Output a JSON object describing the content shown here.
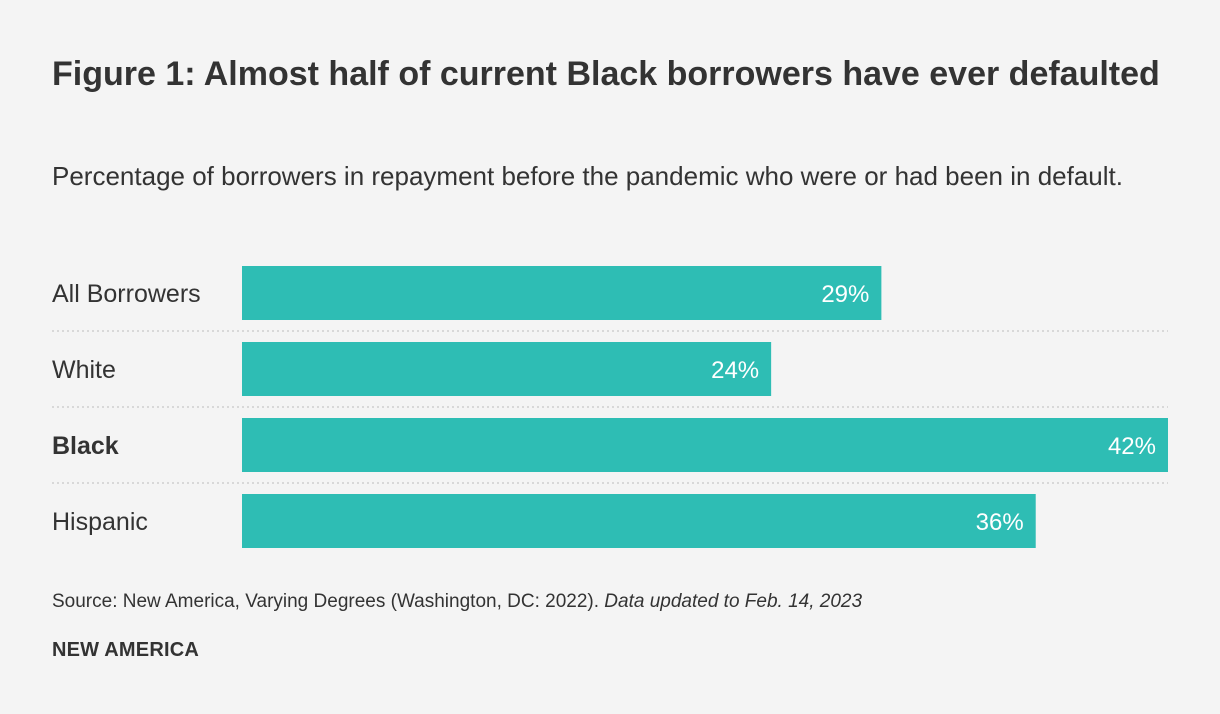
{
  "chart_data": {
    "type": "bar",
    "orientation": "horizontal",
    "title": "Figure 1: Almost half of current Black borrowers have ever defaulted",
    "subtitle": "Percentage of borrowers in repayment before the pandemic who were or had been in default.",
    "categories": [
      "All Borrowers",
      "White",
      "Black",
      "Hispanic"
    ],
    "values": [
      29,
      24,
      42,
      36
    ],
    "value_labels": [
      "29%",
      "24%",
      "42%",
      "36%"
    ],
    "emphasized_category": "Black",
    "xlim": [
      0,
      42
    ],
    "grid": false,
    "legend": "none",
    "bar_color": "#2ebdb4",
    "separator_color": "#cfcfcf"
  },
  "footer": {
    "source": "Source: New America, Varying Degrees (Washington, DC: 2022).",
    "note": "Data updated to Feb. 14, 2023",
    "brand": "NEW AMERICA"
  }
}
